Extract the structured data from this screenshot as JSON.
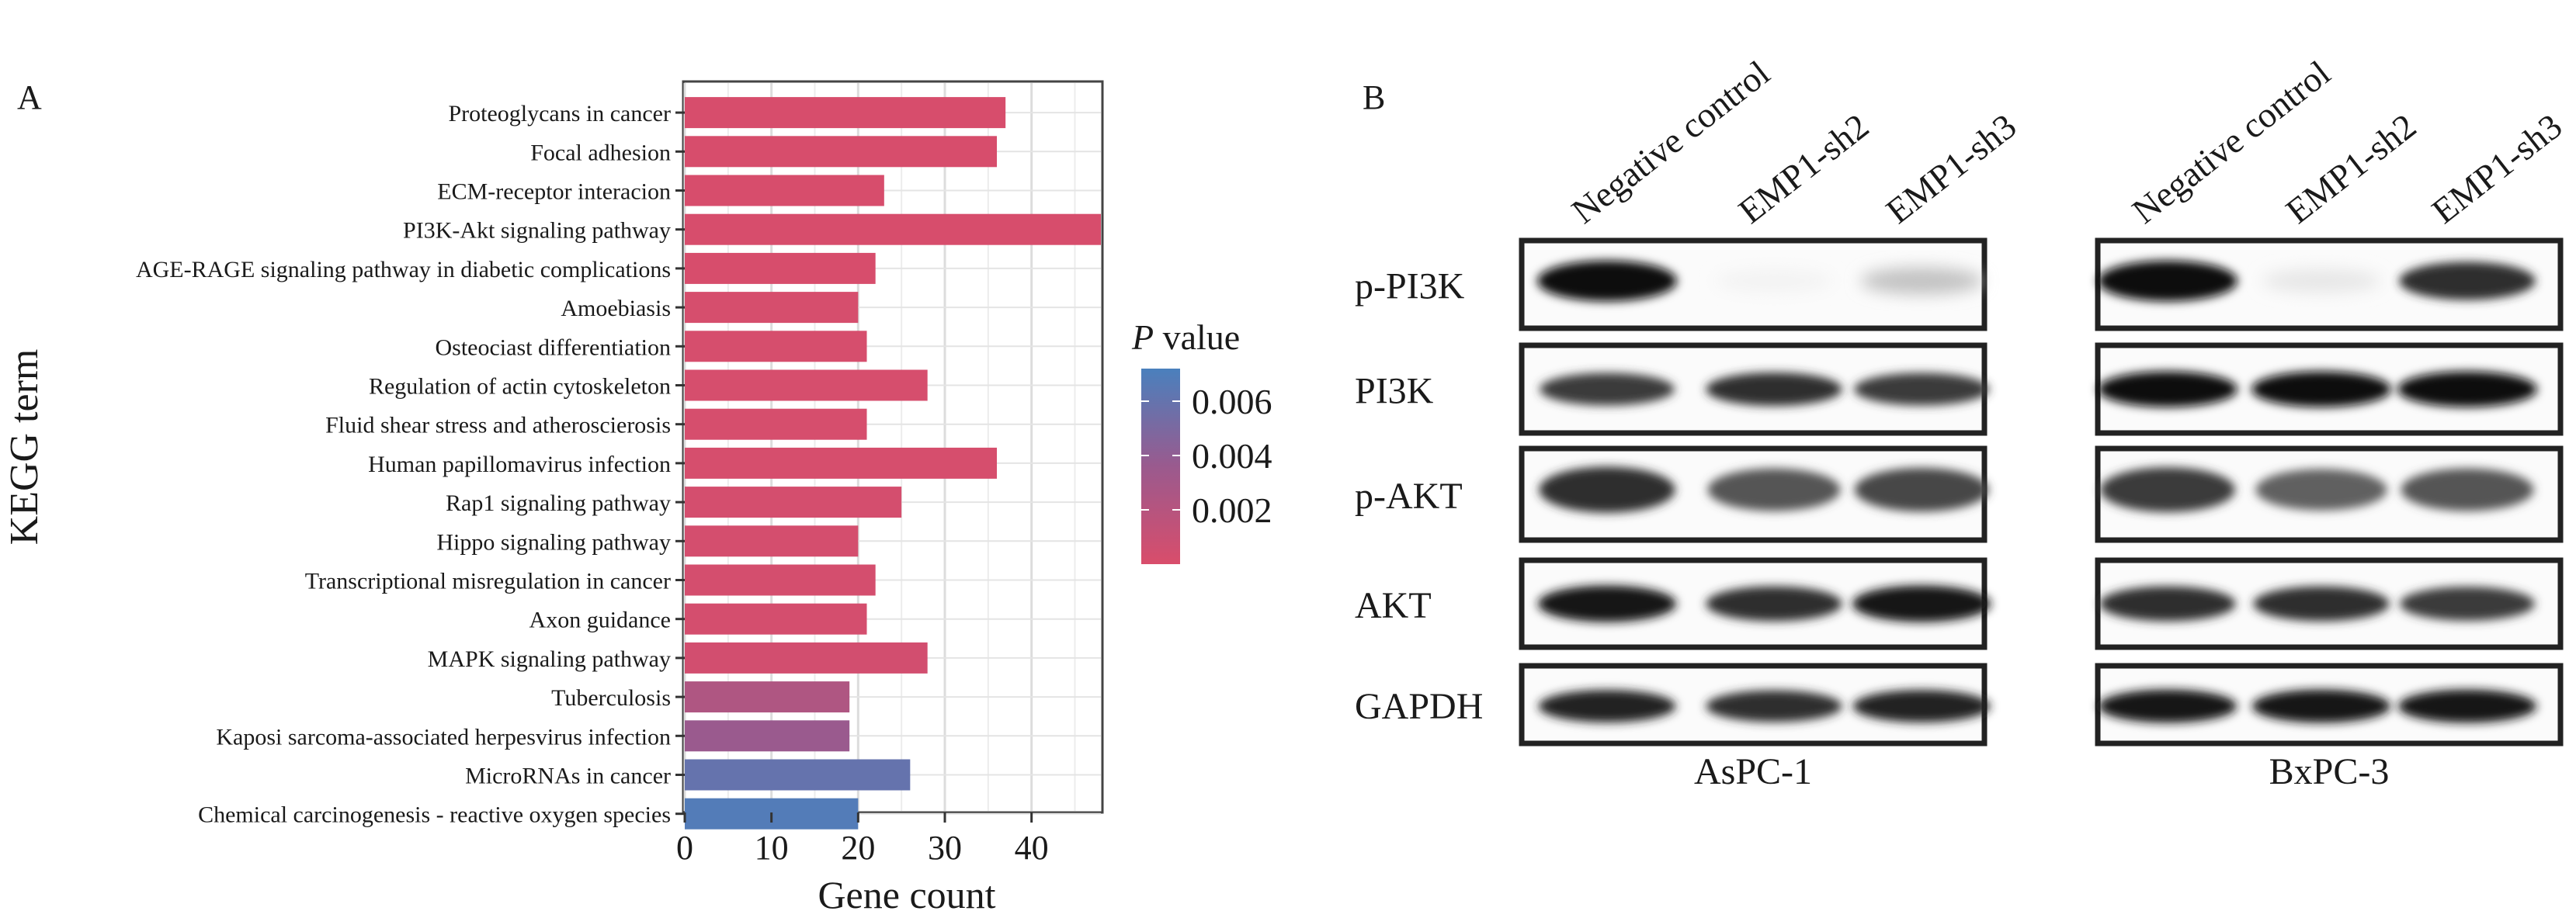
{
  "panels": {
    "a_label": "A",
    "b_label": "B"
  },
  "chart_data": [
    {
      "type": "bar",
      "orientation": "horizontal",
      "xlabel": "Gene count",
      "ylabel": "KEGG term",
      "xlim": [
        0,
        48
      ],
      "xticks": [
        0,
        10,
        20,
        30,
        40
      ],
      "grid": true,
      "categories": [
        "Proteoglycans in cancer",
        "Focal adhesion",
        "ECM-receptor interacion",
        "PI3K-Akt signaling pathway",
        "AGE-RAGE signaling pathway in diabetic complications",
        "Amoebiasis",
        "Osteociast differentiation",
        "Regulation of actin cytoskeleton",
        "Fluid shear stress and atheroscierosis",
        "Human papillomavirus infection",
        "Rap1 signaling pathway",
        "Hippo signaling pathway",
        "Transcriptional misregulation in cancer",
        "Axon guidance",
        "MAPK signaling pathway",
        "Tuberculosis",
        "Kaposi sarcoma-associated herpesvirus infection",
        "MicroRNAs in cancer",
        "Chemical carcinogenesis - reactive oxygen species"
      ],
      "values": [
        37,
        36,
        23,
        48,
        22,
        20,
        21,
        28,
        21,
        36,
        25,
        20,
        22,
        21,
        28,
        19,
        19,
        26,
        20
      ],
      "p_values": [
        0.0001,
        0.0001,
        0.0001,
        0.0001,
        0.0001,
        0.0002,
        0.0002,
        0.0002,
        0.0002,
        0.0002,
        0.0003,
        0.0003,
        0.0003,
        0.0003,
        0.0004,
        0.0024,
        0.0036,
        0.006,
        0.0068
      ],
      "colorbar": {
        "title_italic": "P",
        "title_rest": " value",
        "ticks": [
          "0.006",
          "0.004",
          "0.002"
        ],
        "tick_values": [
          0.006,
          0.004,
          0.002
        ],
        "range": [
          0.0,
          0.0072
        ],
        "low_color": "#d94d6b",
        "mid_color": "#9a5a8e",
        "high_color": "#4a80bd"
      }
    }
  ],
  "western_blot": {
    "cell_lines": [
      "AsPC-1",
      "BxPC-3"
    ],
    "lanes": [
      "Negative control",
      "EMP1-sh2",
      "EMP1-sh3"
    ],
    "proteins": [
      "p-PI3K",
      "PI3K",
      "p-AKT",
      "AKT",
      "GAPDH"
    ],
    "band_intensity": {
      "AsPC-1": {
        "p-PI3K": [
          1.0,
          0.05,
          0.25
        ],
        "PI3K": [
          0.8,
          0.85,
          0.8
        ],
        "p-AKT": [
          0.85,
          0.7,
          0.75
        ],
        "AKT": [
          0.95,
          0.85,
          0.95
        ],
        "GAPDH": [
          0.9,
          0.85,
          0.9
        ]
      },
      "BxPC-3": {
        "p-PI3K": [
          1.0,
          0.1,
          0.85
        ],
        "PI3K": [
          1.0,
          1.0,
          1.0
        ],
        "p-AKT": [
          0.8,
          0.65,
          0.7
        ],
        "AKT": [
          0.85,
          0.85,
          0.8
        ],
        "GAPDH": [
          0.95,
          0.95,
          0.95
        ]
      }
    }
  }
}
